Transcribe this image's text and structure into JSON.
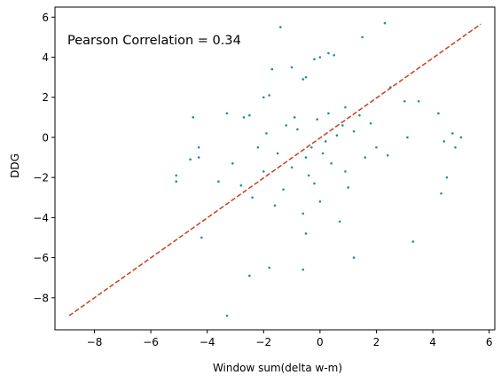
{
  "chart_data": {
    "type": "scatter",
    "title": "",
    "xlabel": "Window sum(delta w-m)",
    "ylabel": "DDG",
    "annotation": "Pearson Correlation = 0.34",
    "xlim": [
      -9.4,
      6.2
    ],
    "ylim": [
      -9.6,
      6.5
    ],
    "xticks": [
      -8,
      -6,
      -4,
      -2,
      0,
      2,
      4,
      6
    ],
    "yticks": [
      -8,
      -6,
      -4,
      -2,
      0,
      2,
      4,
      6
    ],
    "grid": false,
    "legend": "none",
    "colors": {
      "points": "#1a9493",
      "fit_line": "#c8421e"
    },
    "fit_line": {
      "x": [
        -8.9,
        5.7
      ],
      "y": [
        -8.9,
        5.65
      ]
    },
    "points": [
      [
        -3.3,
        -8.9
      ],
      [
        -2.5,
        -6.9
      ],
      [
        -1.8,
        -6.5
      ],
      [
        -0.6,
        -6.6
      ],
      [
        1.2,
        -6.0
      ],
      [
        3.3,
        -5.2
      ],
      [
        -4.2,
        -5.0
      ],
      [
        -0.5,
        -4.8
      ],
      [
        -4.3,
        -1.0
      ],
      [
        -4.6,
        -1.1
      ],
      [
        -4.3,
        -0.5
      ],
      [
        -4.5,
        1.0
      ],
      [
        -3.3,
        1.2
      ],
      [
        -2.7,
        1.0
      ],
      [
        -2.5,
        1.1
      ],
      [
        -2.0,
        2.0
      ],
      [
        -1.8,
        2.1
      ],
      [
        -1.7,
        3.4
      ],
      [
        -1.4,
        5.5
      ],
      [
        -1.0,
        3.5
      ],
      [
        -0.6,
        2.9
      ],
      [
        -0.5,
        3.0
      ],
      [
        -0.2,
        3.9
      ],
      [
        0.0,
        4.0
      ],
      [
        0.3,
        4.2
      ],
      [
        0.5,
        4.1
      ],
      [
        0.9,
        1.5
      ],
      [
        1.5,
        5.0
      ],
      [
        2.3,
        5.7
      ],
      [
        2.5,
        2.5
      ],
      [
        3.0,
        1.8
      ],
      [
        3.1,
        0.0
      ],
      [
        3.5,
        1.8
      ],
      [
        4.2,
        1.2
      ],
      [
        4.4,
        -0.2
      ],
      [
        4.3,
        -2.8
      ],
      [
        4.5,
        -2.0
      ],
      [
        4.8,
        -0.5
      ],
      [
        5.0,
        0.0
      ],
      [
        4.7,
        0.2
      ],
      [
        -5.1,
        -1.9
      ],
      [
        -5.1,
        -2.2
      ],
      [
        -0.5,
        -1.0
      ],
      [
        0.2,
        -0.2
      ],
      [
        0.6,
        0.1
      ],
      [
        -0.3,
        -0.5
      ],
      [
        0.8,
        0.6
      ],
      [
        -1.0,
        -1.5
      ],
      [
        -1.5,
        -0.8
      ],
      [
        -2.0,
        -1.7
      ],
      [
        -0.8,
        0.4
      ],
      [
        0.4,
        -1.3
      ],
      [
        1.2,
        0.3
      ],
      [
        -0.2,
        -2.3
      ],
      [
        -1.3,
        -2.6
      ],
      [
        -2.4,
        -3.0
      ],
      [
        0.0,
        -3.2
      ],
      [
        1.0,
        -2.5
      ],
      [
        -0.6,
        -3.8
      ],
      [
        1.6,
        -1.0
      ],
      [
        2.0,
        -0.5
      ],
      [
        -3.1,
        -1.3
      ],
      [
        -2.8,
        -2.4
      ],
      [
        -1.9,
        0.2
      ],
      [
        0.3,
        1.2
      ],
      [
        -0.9,
        1.0
      ],
      [
        1.4,
        1.1
      ],
      [
        -1.6,
        -3.4
      ],
      [
        0.7,
        -4.2
      ],
      [
        -0.1,
        0.9
      ],
      [
        -2.2,
        -0.5
      ],
      [
        -3.6,
        -2.2
      ],
      [
        2.4,
        -0.9
      ],
      [
        -0.4,
        -1.9
      ],
      [
        0.9,
        -1.7
      ],
      [
        1.8,
        0.7
      ],
      [
        -1.2,
        0.6
      ],
      [
        0.1,
        -0.8
      ]
    ]
  }
}
